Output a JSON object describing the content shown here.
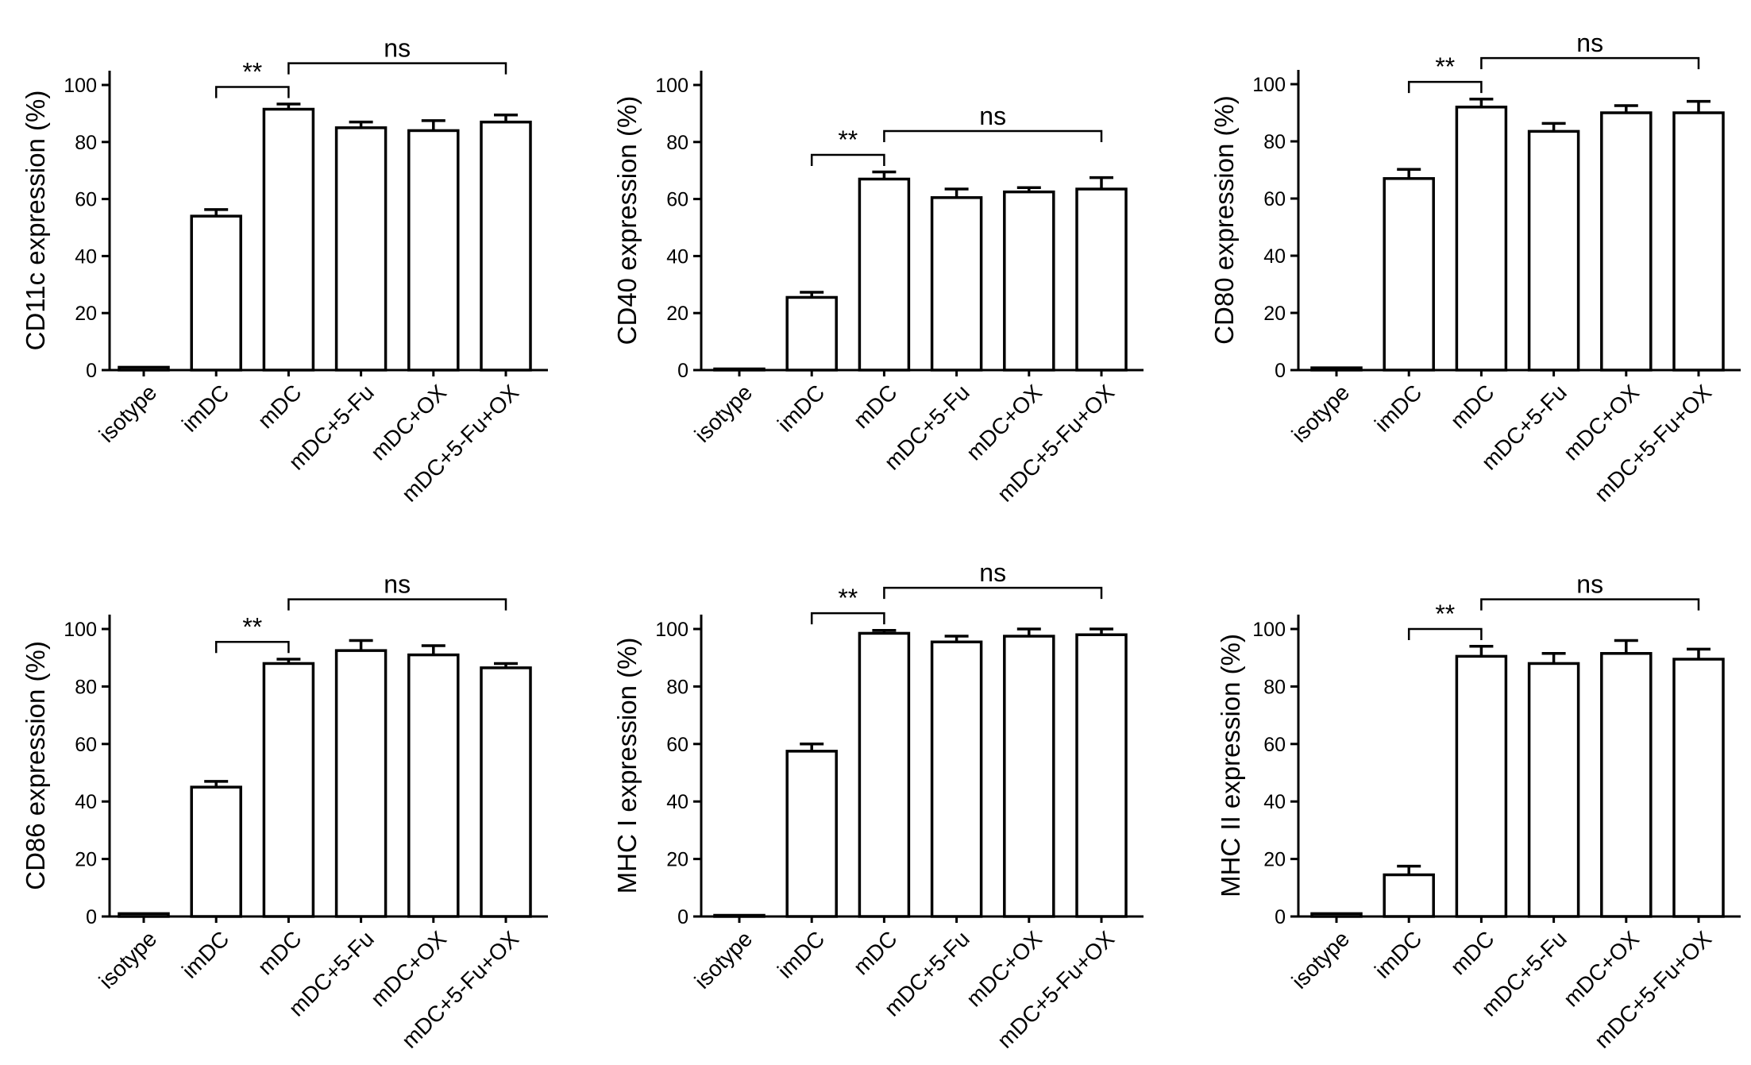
{
  "chart_data": [
    {
      "type": "bar",
      "ylabel": "CD11c expression (%)",
      "categories": [
        "isotype",
        "imDC",
        "mDC",
        "mDC+5-Fu",
        "mDC+OX",
        "mDC+5-Fu+OX"
      ],
      "values": [
        1,
        54,
        91.5,
        85,
        84,
        87
      ],
      "errors": [
        0.8,
        2.3,
        1.8,
        2,
        3.5,
        2.5
      ],
      "ylim": [
        0,
        105
      ],
      "yticks": [
        0,
        20,
        40,
        60,
        80,
        100
      ],
      "annotations": [
        {
          "from": 1,
          "to": 2,
          "label": "**"
        },
        {
          "from": 2,
          "to": 5,
          "label": "ns"
        }
      ]
    },
    {
      "type": "bar",
      "ylabel": "CD40 expression (%)",
      "categories": [
        "isotype",
        "imDC",
        "mDC",
        "mDC+5-Fu",
        "mDC+OX",
        "mDC+5-Fu+OX"
      ],
      "values": [
        0.3,
        25.5,
        67,
        60.5,
        62.5,
        63.5
      ],
      "errors": [
        0.2,
        1.8,
        2.5,
        3,
        1.5,
        4
      ],
      "ylim": [
        0,
        105
      ],
      "yticks": [
        0,
        20,
        40,
        60,
        80,
        100
      ],
      "annotations": [
        {
          "from": 1,
          "to": 2,
          "label": "**"
        },
        {
          "from": 2,
          "to": 5,
          "label": "ns"
        }
      ]
    },
    {
      "type": "bar",
      "ylabel": "CD80 expression (%)",
      "categories": [
        "isotype",
        "imDC",
        "mDC",
        "mDC+5-Fu",
        "mDC+OX",
        "mDC+5-Fu+OX"
      ],
      "values": [
        0.8,
        67,
        92,
        83.5,
        90,
        90
      ],
      "errors": [
        0.5,
        3.2,
        2.8,
        2.8,
        2.5,
        4
      ],
      "ylim": [
        0,
        105
      ],
      "yticks": [
        0,
        20,
        40,
        60,
        80,
        100
      ],
      "annotations": [
        {
          "from": 1,
          "to": 2,
          "label": "**"
        },
        {
          "from": 2,
          "to": 5,
          "label": "ns"
        }
      ]
    },
    {
      "type": "bar",
      "ylabel": "CD86 expression (%)",
      "categories": [
        "isotype",
        "imDC",
        "mDC",
        "mDC+5-Fu",
        "mDC+OX",
        "mDC+5-Fu+OX"
      ],
      "values": [
        1,
        45,
        88,
        92.5,
        91,
        86.5
      ],
      "errors": [
        0.5,
        2,
        1.5,
        3.5,
        3.2,
        1.5
      ],
      "ylim": [
        0,
        105
      ],
      "yticks": [
        0,
        20,
        40,
        60,
        80,
        100
      ],
      "annotations": [
        {
          "from": 1,
          "to": 2,
          "label": "**"
        },
        {
          "from": 2,
          "to": 5,
          "label": "ns"
        }
      ]
    },
    {
      "type": "bar",
      "ylabel": "MHC I expression (%)",
      "categories": [
        "isotype",
        "imDC",
        "mDC",
        "mDC+5-Fu",
        "mDC+OX",
        "mDC+5-Fu+OX"
      ],
      "values": [
        0.3,
        57.5,
        98.5,
        95.5,
        97.5,
        98
      ],
      "errors": [
        0.2,
        2.5,
        1,
        2,
        2.5,
        2
      ],
      "ylim": [
        0,
        105
      ],
      "yticks": [
        0,
        20,
        40,
        60,
        80,
        100
      ],
      "annotations": [
        {
          "from": 1,
          "to": 2,
          "label": "**"
        },
        {
          "from": 2,
          "to": 5,
          "label": "ns"
        }
      ]
    },
    {
      "type": "bar",
      "ylabel": "MHC II expression (%)",
      "categories": [
        "isotype",
        "imDC",
        "mDC",
        "mDC+5-Fu",
        "mDC+OX",
        "mDC+5-Fu+OX"
      ],
      "values": [
        1,
        14.5,
        90.5,
        88,
        91.5,
        89.5
      ],
      "errors": [
        0.5,
        3,
        3.5,
        3.5,
        4.5,
        3.5
      ],
      "ylim": [
        0,
        105
      ],
      "yticks": [
        0,
        20,
        40,
        60,
        80,
        100
      ],
      "annotations": [
        {
          "from": 1,
          "to": 2,
          "label": "**"
        },
        {
          "from": 2,
          "to": 5,
          "label": "ns"
        }
      ]
    }
  ]
}
